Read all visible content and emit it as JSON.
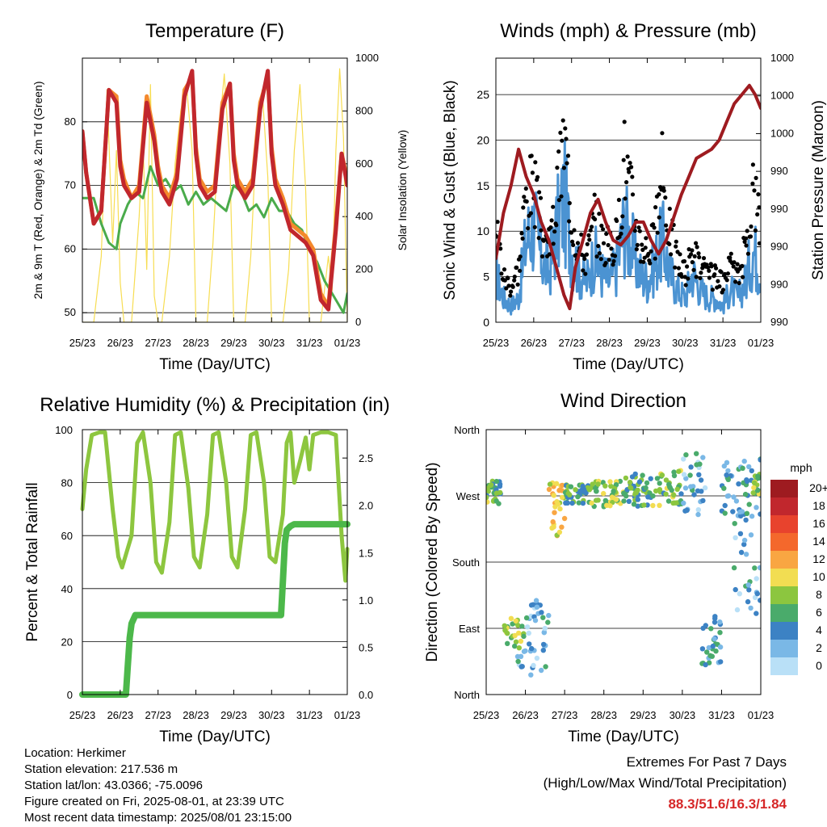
{
  "colors": {
    "temp2m": "#c1272d",
    "temp9m": "#f4892c",
    "dewpoint": "#4aab4b",
    "solar": "#f7dd52",
    "wind": "#4b93d2",
    "gust": "#000000",
    "pressure": "#9e1b20",
    "rh": "#8dc63f",
    "rain": "#4cb84a",
    "extremes": "#d62728"
  },
  "x_ticks": [
    "25/23",
    "26/23",
    "27/23",
    "28/23",
    "29/23",
    "30/23",
    "31/23",
    "01/23"
  ],
  "chart_data": [
    {
      "type": "line",
      "title": "Temperature (F)",
      "xlabel": "Time (Day/UTC)",
      "ylabel": "2m & 9m T (Red, Orange) & 2m Td (Green)",
      "ylabel_right": "Solar Insolation (Yellow)",
      "ylim": [
        48.5,
        90
      ],
      "ylim_right": [
        0,
        1000
      ],
      "yticks": [
        50,
        60,
        70,
        80
      ],
      "yticks_right": [
        0,
        200,
        400,
        600,
        800,
        1000
      ],
      "xlim": [
        0,
        7
      ],
      "x_ticks": [
        "25/23",
        "26/23",
        "27/23",
        "28/23",
        "29/23",
        "30/23",
        "31/23",
        "01/23"
      ],
      "series": [
        {
          "axis": "left",
          "color": "#f4892c",
          "width": 5,
          "x": [
            0,
            0.1,
            0.3,
            0.5,
            0.7,
            0.9,
            1.0,
            1.1,
            1.3,
            1.5,
            1.7,
            1.9,
            2.0,
            2.1,
            2.3,
            2.5,
            2.7,
            2.9,
            3.0,
            3.1,
            3.3,
            3.5,
            3.7,
            3.9,
            4.0,
            4.1,
            4.3,
            4.5,
            4.7,
            4.9,
            5.0,
            5.1,
            5.3,
            5.5,
            5.7,
            5.9,
            6.0,
            6.1,
            6.3,
            6.5,
            6.7,
            6.85,
            7.0
          ],
          "y": [
            78.5,
            72,
            64,
            66,
            85,
            84,
            74,
            71,
            68,
            70,
            84,
            78,
            73,
            70,
            68,
            72,
            85,
            87,
            76,
            71,
            69,
            70,
            83,
            86,
            75,
            71,
            69,
            71,
            83,
            87,
            76,
            71,
            68,
            64,
            63,
            62,
            61,
            60,
            53,
            51,
            64,
            75,
            71
          ]
        },
        {
          "axis": "left",
          "color": "#c1272d",
          "width": 5,
          "x": [
            0,
            0.1,
            0.3,
            0.5,
            0.7,
            0.9,
            1.0,
            1.1,
            1.3,
            1.5,
            1.7,
            1.9,
            2.0,
            2.1,
            2.3,
            2.5,
            2.7,
            2.9,
            3.0,
            3.1,
            3.3,
            3.5,
            3.7,
            3.9,
            4.0,
            4.1,
            4.3,
            4.5,
            4.7,
            4.9,
            5.0,
            5.1,
            5.3,
            5.5,
            5.7,
            5.9,
            6.0,
            6.1,
            6.3,
            6.5,
            6.7,
            6.85,
            7.0
          ],
          "y": [
            78.5,
            72,
            64,
            66,
            85,
            83,
            73,
            70,
            68,
            69,
            83,
            77,
            72,
            69,
            67,
            71,
            84,
            88,
            75,
            70,
            68,
            69,
            82,
            86,
            74,
            70,
            68,
            70,
            82,
            88,
            75,
            70,
            67,
            63,
            62,
            61,
            60,
            59,
            52,
            50.5,
            63,
            75,
            70
          ]
        },
        {
          "axis": "left",
          "color": "#4aab4b",
          "width": 3,
          "x": [
            0,
            0.1,
            0.3,
            0.5,
            0.7,
            0.9,
            1.0,
            1.2,
            1.4,
            1.6,
            1.8,
            2.0,
            2.2,
            2.4,
            2.6,
            2.8,
            3.0,
            3.2,
            3.4,
            3.6,
            3.8,
            4.0,
            4.2,
            4.4,
            4.6,
            4.8,
            5.0,
            5.2,
            5.4,
            5.6,
            5.8,
            6.0,
            6.2,
            6.4,
            6.6,
            6.8,
            6.9,
            7.0
          ],
          "y": [
            68,
            68,
            68,
            64,
            61,
            60,
            64,
            67,
            69,
            68,
            73,
            70,
            71,
            69,
            70,
            67,
            69,
            67,
            68,
            67,
            66,
            70,
            69,
            66,
            67,
            65,
            68,
            66,
            66,
            64,
            63,
            60,
            58,
            55,
            53,
            51,
            50,
            53
          ]
        },
        {
          "axis": "right",
          "color": "#f7dd52",
          "width": 1.2,
          "x": [
            0,
            0.15,
            0.3,
            0.5,
            0.65,
            0.8,
            0.9,
            1.0,
            1.1,
            1.2,
            1.3,
            1.5,
            1.6,
            1.7,
            1.8,
            1.9,
            2.0,
            2.1,
            2.3,
            2.45,
            2.6,
            2.75,
            2.9,
            3.0,
            3.3,
            3.45,
            3.6,
            3.75,
            3.9,
            4.0,
            4.3,
            4.45,
            4.6,
            4.75,
            4.9,
            5.0,
            5.3,
            5.45,
            5.6,
            5.75,
            5.9,
            6.0,
            6.3,
            6.5,
            6.6,
            6.7,
            6.8,
            6.9,
            7.0
          ],
          "y": [
            0,
            0,
            0,
            250,
            880,
            300,
            650,
            150,
            0,
            0,
            0,
            400,
            700,
            200,
            900,
            100,
            0,
            0,
            250,
            600,
            800,
            900,
            650,
            0,
            0,
            300,
            700,
            940,
            600,
            0,
            0,
            250,
            700,
            880,
            550,
            0,
            0,
            200,
            650,
            900,
            500,
            0,
            0,
            250,
            120,
            650,
            960,
            700,
            0
          ]
        }
      ]
    },
    {
      "type": "line",
      "title": "Winds (mph) & Pressure (mb)",
      "xlabel": "Time (Day/UTC)",
      "ylabel": "Sonic Wind & Gust (Blue, Black)",
      "ylabel_right": "Station Pressure (Maroon)",
      "ylim": [
        0,
        29
      ],
      "yticks": [
        0,
        5,
        10,
        15,
        20,
        25
      ],
      "yticks_right": [
        "990",
        "990",
        "990",
        "990",
        "990",
        "1000",
        "1000",
        "1000"
      ],
      "xlim": [
        0,
        7
      ],
      "x_ticks": [
        "25/23",
        "26/23",
        "27/23",
        "28/23",
        "29/23",
        "30/23",
        "31/23",
        "01/23"
      ],
      "series": [
        {
          "color": "#4b93d2",
          "width": 3,
          "x": [
            0,
            0.2,
            0.4,
            0.6,
            0.8,
            1.0,
            1.2,
            1.4,
            1.6,
            1.8,
            2.0,
            2.2,
            2.4,
            2.6,
            2.8,
            3.0,
            3.2,
            3.4,
            3.6,
            3.8,
            4.0,
            4.2,
            4.4,
            4.6,
            4.8,
            5.0,
            5.2,
            5.4,
            5.6,
            5.8,
            6.0,
            6.2,
            6.4,
            6.6,
            6.8,
            7.0
          ],
          "y": [
            6,
            3,
            2,
            3,
            10,
            12,
            8,
            6,
            11,
            15,
            9,
            6,
            5,
            8,
            6,
            5,
            7,
            12,
            9,
            6,
            5,
            7,
            10,
            6,
            4,
            3,
            6,
            4,
            3,
            3,
            2,
            4,
            3,
            5,
            9,
            6
          ]
        },
        {
          "color": "#9e1b20",
          "width": 4,
          "x": [
            0,
            0.2,
            0.4,
            0.6,
            0.8,
            1.0,
            1.2,
            1.4,
            1.6,
            1.8,
            1.95,
            2.1,
            2.3,
            2.5,
            2.7,
            2.9,
            3.1,
            3.3,
            3.5,
            3.7,
            3.9,
            4.1,
            4.3,
            4.5,
            4.7,
            4.9,
            5.1,
            5.3,
            5.5,
            5.7,
            5.9,
            6.1,
            6.3,
            6.5,
            6.7,
            6.85,
            7.0
          ],
          "y": [
            7,
            12,
            15,
            19,
            16,
            14,
            11,
            9,
            6,
            3,
            1.5,
            6,
            9,
            12,
            13.5,
            11,
            9,
            8.5,
            9.5,
            11,
            11,
            9,
            7.5,
            9,
            11.5,
            14,
            16,
            18,
            18.5,
            19,
            20,
            22,
            24,
            25,
            26,
            25,
            23.5
          ]
        },
        {
          "color": "#000000",
          "width": 3,
          "x": [
            0,
            0.2,
            0.4,
            0.6,
            0.8,
            1.0,
            1.2,
            1.4,
            1.6,
            1.8,
            2.0,
            2.2,
            2.4,
            2.6,
            2.8,
            3.0,
            3.2,
            3.4,
            3.6,
            3.8,
            4.0,
            4.2,
            4.4,
            4.6,
            4.8,
            5.0,
            5.2,
            5.4,
            5.6,
            5.8,
            6.0,
            6.2,
            6.4,
            6.6,
            6.8,
            7.0
          ],
          "y": [
            11,
            5,
            4,
            6,
            14,
            15,
            10,
            8,
            13,
            20,
            12,
            8,
            7,
            11,
            9,
            8,
            9,
            18,
            13,
            9,
            8,
            9,
            16,
            10,
            7,
            5,
            8,
            6,
            5,
            5,
            4,
            6,
            5,
            8,
            15,
            10
          ]
        }
      ]
    },
    {
      "type": "line",
      "title": "Relative Humidity (%) & Precipitation (in)",
      "xlabel": "Time (Day/UTC)",
      "ylabel": "Percent & Total Rainfall",
      "ylim": [
        0,
        100
      ],
      "yticks": [
        0,
        20,
        40,
        60,
        80,
        100
      ],
      "ylim_right": [
        0,
        2.8
      ],
      "yticks_right": [
        "0.0",
        "0.5",
        "1.0",
        "1.5",
        "2.0",
        "2.5"
      ],
      "xlim": [
        0,
        7
      ],
      "x_ticks": [
        "25/23",
        "26/23",
        "27/23",
        "28/23",
        "29/23",
        "30/23",
        "31/23",
        "01/23"
      ],
      "series": [
        {
          "axis": "left",
          "color": "#8dc63f",
          "width": 5,
          "x": [
            0,
            0.1,
            0.25,
            0.45,
            0.6,
            0.8,
            0.95,
            1.05,
            1.3,
            1.45,
            1.6,
            1.8,
            1.95,
            2.1,
            2.3,
            2.45,
            2.6,
            2.8,
            2.95,
            3.1,
            3.3,
            3.45,
            3.6,
            3.8,
            3.95,
            4.1,
            4.3,
            4.45,
            4.6,
            4.8,
            4.95,
            5.1,
            5.3,
            5.4,
            5.5,
            5.6,
            5.75,
            5.9,
            6.0,
            6.1,
            6.3,
            6.5,
            6.7,
            6.85,
            6.95,
            7.0
          ],
          "y": [
            70,
            85,
            98,
            99,
            99,
            70,
            52,
            48,
            60,
            95,
            99,
            80,
            50,
            46,
            65,
            98,
            99,
            78,
            52,
            48,
            68,
            98,
            99,
            80,
            52,
            48,
            70,
            98,
            99,
            80,
            52,
            50,
            68,
            95,
            99,
            80,
            88,
            97,
            85,
            98,
            99,
            99,
            98,
            60,
            43,
            55
          ]
        },
        {
          "axis": "right",
          "color": "#4cb84a",
          "width": 8,
          "x": [
            0,
            0.5,
            1.0,
            1.15,
            1.2,
            1.25,
            1.3,
            1.4,
            1.6,
            2.0,
            3.0,
            4.0,
            5.0,
            5.25,
            5.3,
            5.35,
            5.4,
            5.5,
            5.6,
            6.0,
            7.0
          ],
          "y": [
            0,
            0,
            0,
            0,
            0.3,
            0.6,
            0.75,
            0.84,
            0.84,
            0.84,
            0.84,
            0.84,
            0.84,
            0.84,
            1.2,
            1.6,
            1.74,
            1.78,
            1.8,
            1.8,
            1.8
          ]
        }
      ]
    },
    {
      "type": "scatter",
      "title": "Wind Direction",
      "xlabel": "Time (Day/UTC)",
      "ylabel": "Direction (Colored By Speed)",
      "ylim": [
        0,
        360
      ],
      "yticks": [
        "North",
        "East",
        "South",
        "West",
        "North"
      ],
      "xlim": [
        0,
        7
      ],
      "x_ticks": [
        "25/23",
        "26/23",
        "27/23",
        "28/23",
        "29/23",
        "30/23",
        "31/23",
        "01/23"
      ],
      "colorbar": {
        "title": "mph",
        "labels": [
          "20+",
          "18",
          "16",
          "14",
          "12",
          "10",
          "8",
          "6",
          "4",
          "2",
          "0"
        ],
        "colors": [
          "#9e1b20",
          "#c1272d",
          "#e8432d",
          "#f4682c",
          "#f9a642",
          "#f2dd52",
          "#8cc63f",
          "#4aab6b",
          "#3c82c4",
          "#7ab8e6",
          "#b9e0f7"
        ]
      },
      "clusters": [
        {
          "x": [
            0,
            0.4
          ],
          "y": [
            255,
            290
          ],
          "speed": 7,
          "n": 30
        },
        {
          "x": [
            0.4,
            1.0
          ],
          "y": [
            60,
            110
          ],
          "speed": 8,
          "n": 25
        },
        {
          "x": [
            0.8,
            1.6
          ],
          "y": [
            20,
            130
          ],
          "speed": 3,
          "n": 45
        },
        {
          "x": [
            1.6,
            2.0
          ],
          "y": [
            210,
            290
          ],
          "speed": 10,
          "n": 30
        },
        {
          "x": [
            2.0,
            2.6
          ],
          "y": [
            260,
            285
          ],
          "speed": 6,
          "n": 40
        },
        {
          "x": [
            2.6,
            3.5
          ],
          "y": [
            255,
            290
          ],
          "speed": 8,
          "n": 45
        },
        {
          "x": [
            3.5,
            4.2
          ],
          "y": [
            255,
            300
          ],
          "speed": 6,
          "n": 45
        },
        {
          "x": [
            4.2,
            5.0
          ],
          "y": [
            255,
            305
          ],
          "speed": 7,
          "n": 40
        },
        {
          "x": [
            5.0,
            5.6
          ],
          "y": [
            240,
            330
          ],
          "speed": 3,
          "n": 30
        },
        {
          "x": [
            5.5,
            6.0
          ],
          "y": [
            40,
            110
          ],
          "speed": 4,
          "n": 30
        },
        {
          "x": [
            6.0,
            7.0
          ],
          "y": [
            230,
            320
          ],
          "speed": 4,
          "n": 50
        },
        {
          "x": [
            6.3,
            7.0
          ],
          "y": [
            110,
            220
          ],
          "speed": 3,
          "n": 25
        },
        {
          "x": [
            6.8,
            7.0
          ],
          "y": [
            270,
            300
          ],
          "speed": 8,
          "n": 15
        }
      ]
    }
  ],
  "footer": {
    "location": "Location: Herkimer",
    "elevation": "Station elevation: 217.536 m",
    "latlon": "Station lat/lon: 43.0366; -75.0096",
    "created": "Figure created on Fri, 2025-08-01, at 23:39 UTC",
    "latest": "Most recent data timestamp: 2025/08/01 23:15:00"
  },
  "extremes": {
    "title": "Extremes For Past 7 Days",
    "subtitle": "(High/Low/Max Wind/Total Precipitation)",
    "values": "88.3/51.6/16.3/1.84"
  }
}
